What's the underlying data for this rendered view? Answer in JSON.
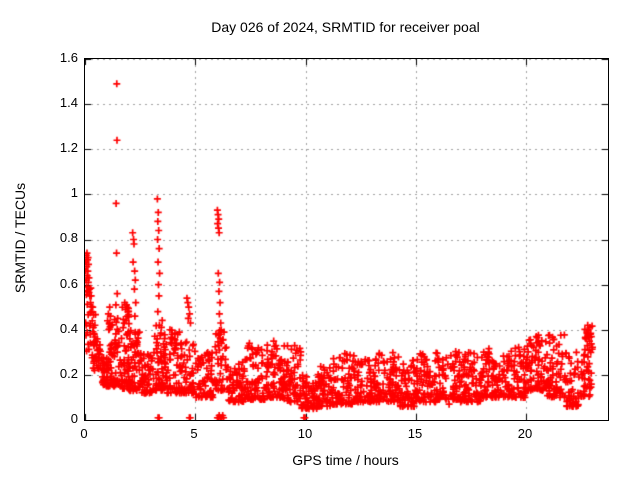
{
  "chart_data": {
    "type": "scatter",
    "title": "Day 026 of 2024, SRMTID for receiver poal",
    "xlabel": "GPS time / hours",
    "ylabel": "SRMTID / TECUs",
    "xlim": [
      0,
      23.7
    ],
    "ylim": [
      0,
      1.6
    ],
    "xticks": [
      0,
      5,
      10,
      15,
      20
    ],
    "yticks": [
      0,
      0.2,
      0.4,
      0.6,
      0.8,
      1,
      1.2,
      1.4,
      1.6
    ],
    "xtick_labels": [
      "0",
      "5",
      "10",
      "15",
      "20"
    ],
    "ytick_labels": [
      "0",
      "0.2",
      "0.4",
      "0.6",
      "0.8",
      "1",
      "1.2",
      "1.4",
      "1.6"
    ],
    "grid": true,
    "legend": false,
    "marker": {
      "shape": "plus",
      "color": "#ff0000",
      "size": 7,
      "stroke": 1.7
    },
    "colors": {
      "axis": "#000000",
      "grid": "#a0a0a0",
      "background": "#ffffff"
    },
    "tick_length": 6,
    "seed": 20240126,
    "points": [
      [
        0.02,
        0.66
      ],
      [
        0.04,
        0.7
      ],
      [
        0.05,
        0.62
      ],
      [
        0.06,
        0.73
      ],
      [
        0.07,
        0.59
      ],
      [
        0.08,
        0.68
      ],
      [
        0.1,
        0.64
      ],
      [
        0.11,
        0.71
      ],
      [
        0.12,
        0.57
      ],
      [
        0.13,
        0.66
      ],
      [
        0.15,
        0.61
      ],
      [
        0.16,
        0.69
      ],
      [
        0.18,
        0.63
      ],
      [
        0.2,
        0.58
      ],
      [
        0.22,
        0.55
      ],
      [
        0.09,
        0.74
      ],
      [
        0.14,
        0.72
      ],
      [
        0.25,
        0.52
      ],
      [
        0.28,
        0.55
      ],
      [
        0.3,
        0.48
      ],
      [
        0.33,
        0.44
      ],
      [
        0.35,
        0.5
      ],
      [
        0.38,
        0.41
      ],
      [
        0.42,
        0.38
      ],
      [
        0.45,
        0.42
      ],
      [
        0.48,
        0.35
      ],
      [
        0.52,
        0.33
      ],
      [
        0.55,
        0.36
      ],
      [
        0.6,
        0.31
      ],
      [
        0.65,
        0.29
      ],
      [
        1.02,
        0.44
      ],
      [
        1.06,
        0.47
      ],
      [
        1.1,
        0.43
      ],
      [
        1.12,
        0.5
      ],
      [
        1.15,
        0.46
      ],
      [
        1.08,
        0.4
      ],
      [
        1.18,
        0.42
      ],
      [
        1.44,
        1.49
      ],
      [
        1.45,
        1.24
      ],
      [
        1.41,
        0.96
      ],
      [
        1.43,
        0.74
      ],
      [
        1.46,
        0.56
      ],
      [
        1.4,
        0.51
      ],
      [
        1.48,
        0.45
      ],
      [
        1.8,
        0.52
      ],
      [
        1.84,
        0.49
      ],
      [
        1.88,
        0.51
      ],
      [
        1.92,
        0.46
      ],
      [
        1.86,
        0.44
      ],
      [
        1.95,
        0.48
      ],
      [
        2.16,
        0.83
      ],
      [
        2.2,
        0.8
      ],
      [
        2.22,
        0.78
      ],
      [
        2.18,
        0.7
      ],
      [
        2.25,
        0.66
      ],
      [
        2.28,
        0.62
      ],
      [
        2.24,
        0.58
      ],
      [
        2.3,
        0.52
      ],
      [
        2.26,
        0.46
      ],
      [
        3.28,
        0.98
      ],
      [
        3.32,
        0.92
      ],
      [
        3.3,
        0.88
      ],
      [
        3.34,
        0.84
      ],
      [
        3.29,
        0.8
      ],
      [
        3.36,
        0.76
      ],
      [
        3.31,
        0.7
      ],
      [
        3.38,
        0.65
      ],
      [
        3.33,
        0.6
      ],
      [
        3.35,
        0.55
      ],
      [
        3.3,
        0.48
      ],
      [
        3.37,
        0.42
      ],
      [
        3.27,
        0.36
      ],
      [
        3.31,
        0.01
      ],
      [
        3.36,
        0.01
      ],
      [
        3.85,
        0.4
      ],
      [
        3.95,
        0.38
      ],
      [
        4.05,
        0.36
      ],
      [
        4.15,
        0.34
      ],
      [
        4.62,
        0.54
      ],
      [
        4.66,
        0.52
      ],
      [
        4.7,
        0.5
      ],
      [
        4.74,
        0.47
      ],
      [
        4.68,
        0.45
      ],
      [
        4.78,
        0.43
      ],
      [
        4.73,
        0.01
      ],
      [
        4.77,
        0.01
      ],
      [
        6.0,
        0.93
      ],
      [
        6.03,
        0.91
      ],
      [
        6.06,
        0.89
      ],
      [
        6.01,
        0.87
      ],
      [
        6.05,
        0.85
      ],
      [
        6.08,
        0.83
      ],
      [
        6.04,
        0.65
      ],
      [
        6.1,
        0.61
      ],
      [
        6.07,
        0.57
      ],
      [
        6.12,
        0.52
      ],
      [
        6.09,
        0.47
      ],
      [
        6.15,
        0.43
      ],
      [
        6.11,
        0.38
      ],
      [
        6.18,
        0.34
      ],
      [
        5.95,
        0.3
      ],
      [
        6.0,
        0.01
      ],
      [
        6.04,
        0.01
      ],
      [
        6.08,
        0.02
      ],
      [
        6.12,
        0.01
      ],
      [
        6.16,
        0.01
      ],
      [
        6.2,
        0.01
      ],
      [
        6.24,
        0.02
      ],
      [
        6.28,
        0.01
      ],
      [
        7.45,
        0.34
      ],
      [
        7.55,
        0.32
      ],
      [
        8.55,
        0.35
      ],
      [
        8.65,
        0.33
      ],
      [
        9.5,
        0.33
      ],
      [
        9.6,
        0.31
      ],
      [
        9.92,
        0.01
      ],
      [
        9.97,
        0.01
      ],
      [
        10.15,
        0.05
      ],
      [
        10.3,
        0.06
      ],
      [
        16.5,
        0.07
      ],
      [
        20.45,
        0.37
      ],
      [
        20.55,
        0.35
      ],
      [
        22.7,
        0.36
      ],
      [
        22.74,
        0.39
      ],
      [
        22.78,
        0.42
      ],
      [
        22.8,
        0.4
      ],
      [
        22.82,
        0.37
      ],
      [
        22.76,
        0.33
      ],
      [
        22.84,
        0.31
      ],
      [
        22.86,
        0.35
      ],
      [
        22.88,
        0.41
      ],
      [
        22.79,
        0.28
      ],
      [
        22.9,
        0.38
      ],
      [
        22.85,
        0.25
      ],
      [
        22.92,
        0.3
      ],
      [
        22.75,
        0.22
      ],
      [
        22.83,
        0.18
      ],
      [
        22.87,
        0.14
      ]
    ],
    "bands": [
      {
        "x0": 0.0,
        "x1": 0.3,
        "n": 20,
        "lo": 0.28,
        "hi": 0.6,
        "p": 1.2
      },
      {
        "x0": 0.3,
        "x1": 0.7,
        "n": 30,
        "lo": 0.22,
        "hi": 0.5,
        "p": 1.6
      },
      {
        "x0": 0.7,
        "x1": 1.1,
        "n": 45,
        "lo": 0.15,
        "hi": 0.32,
        "p": 1.5
      },
      {
        "x0": 1.1,
        "x1": 1.5,
        "n": 45,
        "lo": 0.15,
        "hi": 0.45,
        "p": 2.0
      },
      {
        "x0": 1.5,
        "x1": 2.0,
        "n": 55,
        "lo": 0.14,
        "hi": 0.5,
        "p": 2.2
      },
      {
        "x0": 2.0,
        "x1": 2.5,
        "n": 55,
        "lo": 0.13,
        "hi": 0.4,
        "p": 2.0
      },
      {
        "x0": 2.5,
        "x1": 3.1,
        "n": 55,
        "lo": 0.12,
        "hi": 0.32,
        "p": 1.8
      },
      {
        "x0": 3.1,
        "x1": 3.6,
        "n": 50,
        "lo": 0.13,
        "hi": 0.45,
        "p": 2.0
      },
      {
        "x0": 3.6,
        "x1": 4.3,
        "n": 60,
        "lo": 0.12,
        "hi": 0.4,
        "p": 2.0
      },
      {
        "x0": 4.3,
        "x1": 5.0,
        "n": 55,
        "lo": 0.12,
        "hi": 0.35,
        "p": 1.8
      },
      {
        "x0": 5.0,
        "x1": 5.9,
        "n": 65,
        "lo": 0.1,
        "hi": 0.3,
        "p": 1.8
      },
      {
        "x0": 5.9,
        "x1": 6.4,
        "n": 40,
        "lo": 0.13,
        "hi": 0.4,
        "p": 1.6
      },
      {
        "x0": 6.4,
        "x1": 7.2,
        "n": 60,
        "lo": 0.08,
        "hi": 0.26,
        "p": 1.6
      },
      {
        "x0": 7.2,
        "x1": 8.2,
        "n": 75,
        "lo": 0.09,
        "hi": 0.33,
        "p": 1.8
      },
      {
        "x0": 8.2,
        "x1": 9.0,
        "n": 70,
        "lo": 0.1,
        "hi": 0.35,
        "p": 1.8
      },
      {
        "x0": 9.0,
        "x1": 9.8,
        "n": 65,
        "lo": 0.08,
        "hi": 0.33,
        "p": 1.9
      },
      {
        "x0": 9.8,
        "x1": 10.5,
        "n": 55,
        "lo": 0.05,
        "hi": 0.2,
        "p": 1.5
      },
      {
        "x0": 10.5,
        "x1": 11.2,
        "n": 60,
        "lo": 0.06,
        "hi": 0.24,
        "p": 1.6
      },
      {
        "x0": 11.2,
        "x1": 12.2,
        "n": 80,
        "lo": 0.07,
        "hi": 0.3,
        "p": 1.8
      },
      {
        "x0": 12.2,
        "x1": 13.2,
        "n": 80,
        "lo": 0.08,
        "hi": 0.27,
        "p": 1.7
      },
      {
        "x0": 13.2,
        "x1": 14.2,
        "n": 80,
        "lo": 0.08,
        "hi": 0.3,
        "p": 1.8
      },
      {
        "x0": 14.2,
        "x1": 15.0,
        "n": 65,
        "lo": 0.06,
        "hi": 0.3,
        "p": 1.8
      },
      {
        "x0": 15.0,
        "x1": 16.0,
        "n": 80,
        "lo": 0.08,
        "hi": 0.31,
        "p": 1.8
      },
      {
        "x0": 16.0,
        "x1": 17.0,
        "n": 80,
        "lo": 0.09,
        "hi": 0.31,
        "p": 1.8
      },
      {
        "x0": 17.0,
        "x1": 18.0,
        "n": 80,
        "lo": 0.08,
        "hi": 0.3,
        "p": 1.8
      },
      {
        "x0": 18.0,
        "x1": 19.0,
        "n": 80,
        "lo": 0.1,
        "hi": 0.33,
        "p": 1.8
      },
      {
        "x0": 19.0,
        "x1": 20.0,
        "n": 80,
        "lo": 0.1,
        "hi": 0.33,
        "p": 1.7
      },
      {
        "x0": 20.0,
        "x1": 20.9,
        "n": 75,
        "lo": 0.13,
        "hi": 0.38,
        "p": 1.6
      },
      {
        "x0": 20.9,
        "x1": 21.8,
        "n": 70,
        "lo": 0.1,
        "hi": 0.38,
        "p": 1.8
      },
      {
        "x0": 21.8,
        "x1": 22.4,
        "n": 50,
        "lo": 0.06,
        "hi": 0.3,
        "p": 1.7
      },
      {
        "x0": 22.4,
        "x1": 23.0,
        "n": 45,
        "lo": 0.1,
        "hi": 0.42,
        "p": 1.4
      }
    ]
  }
}
